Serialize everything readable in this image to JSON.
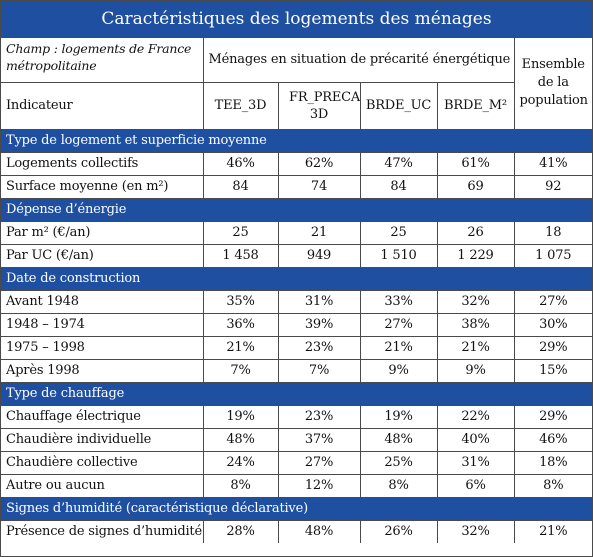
{
  "title": "Caractéristiques des logements des ménages",
  "header": {
    "champ": "Champ : logements de France métropolitaine",
    "group": "Ménages en situation de précarité énergétique",
    "ensemble": "Ensemble de la population",
    "indicateur": "Indicateur",
    "columns": [
      "TEE_3D",
      "FR_PRECA_ 3D",
      "BRDE_UC",
      "BRDE_M²"
    ]
  },
  "sections": [
    {
      "title": "Type de logement et superficie moyenne",
      "rows": [
        {
          "label": "Logements collectifs",
          "values": [
            "46%",
            "62%",
            "47%",
            "61%",
            "41%"
          ]
        },
        {
          "label": "Surface moyenne (en m²)",
          "values": [
            "84",
            "74",
            "84",
            "69",
            "92"
          ]
        }
      ]
    },
    {
      "title": "Dépense d’énergie",
      "rows": [
        {
          "label": "Par m² (€/an)",
          "values": [
            "25",
            "21",
            "25",
            "26",
            "18"
          ]
        },
        {
          "label": "Par UC (€/an)",
          "values": [
            "1 458",
            "949",
            "1 510",
            "1 229",
            "1 075"
          ]
        }
      ]
    },
    {
      "title": "Date de construction",
      "rows": [
        {
          "label": "Avant 1948",
          "values": [
            "35%",
            "31%",
            "33%",
            "32%",
            "27%"
          ]
        },
        {
          "label": "1948 – 1974",
          "values": [
            "36%",
            "39%",
            "27%",
            "38%",
            "30%"
          ]
        },
        {
          "label": "1975 – 1998",
          "values": [
            "21%",
            "23%",
            "21%",
            "21%",
            "29%"
          ]
        },
        {
          "label": "Après 1998",
          "values": [
            "7%",
            "7%",
            "9%",
            "9%",
            "15%"
          ]
        }
      ]
    },
    {
      "title": "Type de chauffage",
      "rows": [
        {
          "label": "Chauffage électrique",
          "values": [
            "19%",
            "23%",
            "19%",
            "22%",
            "29%"
          ]
        },
        {
          "label": "Chaudière individuelle",
          "values": [
            "48%",
            "37%",
            "48%",
            "40%",
            "46%"
          ]
        },
        {
          "label": "Chaudière collective",
          "values": [
            "24%",
            "27%",
            "25%",
            "31%",
            "18%"
          ]
        },
        {
          "label": "Autre ou aucun",
          "values": [
            "8%",
            "12%",
            "8%",
            "6%",
            "8%"
          ]
        }
      ]
    },
    {
      "title": "Signes d’humidité (caractéristique déclarative)",
      "rows": [
        {
          "label": "Présence de signes d’humidité",
          "values": [
            "28%",
            "48%",
            "26%",
            "32%",
            "21%"
          ]
        }
      ]
    }
  ],
  "colors": {
    "section_bg": "#1f4fa0",
    "section_text": "#ffffff",
    "border": "#4a4a4a"
  }
}
